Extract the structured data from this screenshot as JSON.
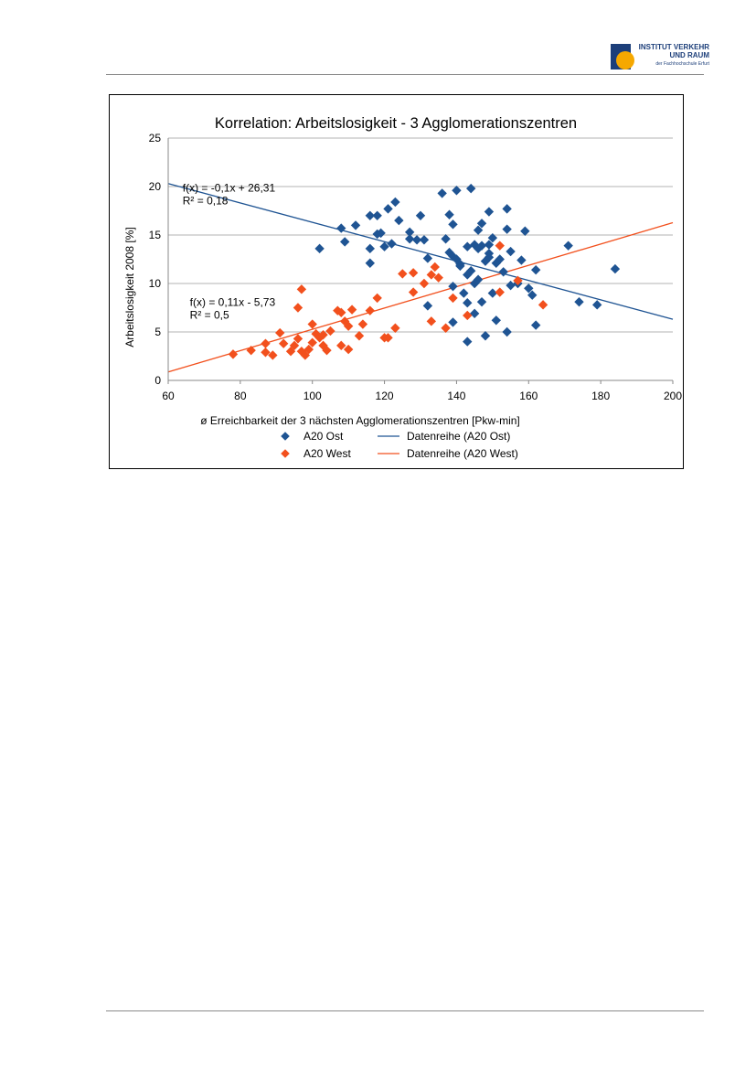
{
  "header": {
    "institute_line1": "INSTITUT VERKEHR",
    "institute_line2": "UND RAUM",
    "institute_line3": "der Fachhochschule Erfurt"
  },
  "colors": {
    "ost": "#1f5493",
    "west": "#f2501d",
    "grid": "#b3b3b3",
    "logo_blue": "#1d3f7a",
    "logo_orange": "#f6a800"
  },
  "chart_data": {
    "type": "scatter",
    "title": "Korrelation: Arbeitslosigkeit - 3 Agglomerationszentren",
    "xlabel": "ø Erreichbarkeit der 3 nächsten Agglomerationszentren [Pkw-min]",
    "ylabel": "Arbeitslosigkeit 2008 [%]",
    "xlim": [
      60,
      200
    ],
    "ylim": [
      0,
      25
    ],
    "xticks": [
      60,
      80,
      100,
      120,
      140,
      160,
      180,
      200
    ],
    "yticks": [
      0,
      5,
      10,
      15,
      20,
      25
    ],
    "grid": "horizontal",
    "legend_position": "bottom",
    "series": [
      {
        "name": "A20 Ost",
        "kind": "points",
        "color": "#1f5493",
        "points": [
          [
            102,
            13.6
          ],
          [
            108,
            15.7
          ],
          [
            109,
            14.3
          ],
          [
            112,
            16.0
          ],
          [
            116,
            12.1
          ],
          [
            116,
            17.0
          ],
          [
            116,
            13.6
          ],
          [
            118,
            17.0
          ],
          [
            118,
            15.1
          ],
          [
            119,
            15.2
          ],
          [
            120,
            13.8
          ],
          [
            121,
            17.7
          ],
          [
            122,
            14.1
          ],
          [
            123,
            18.4
          ],
          [
            124,
            16.5
          ],
          [
            127,
            14.6
          ],
          [
            127,
            15.3
          ],
          [
            129,
            14.5
          ],
          [
            130,
            17.0
          ],
          [
            131,
            14.5
          ],
          [
            132,
            12.6
          ],
          [
            132,
            7.7
          ],
          [
            136,
            19.3
          ],
          [
            137,
            14.6
          ],
          [
            138,
            17.1
          ],
          [
            138,
            13.2
          ],
          [
            139,
            12.8
          ],
          [
            139,
            16.1
          ],
          [
            139,
            9.7
          ],
          [
            139,
            6.0
          ],
          [
            140,
            19.6
          ],
          [
            140,
            12.5
          ],
          [
            141,
            12.0
          ],
          [
            141,
            11.8
          ],
          [
            142,
            9.0
          ],
          [
            143,
            13.8
          ],
          [
            143,
            10.9
          ],
          [
            143,
            8.0
          ],
          [
            143,
            4.0
          ],
          [
            144,
            19.8
          ],
          [
            144,
            11.3
          ],
          [
            145,
            14.0
          ],
          [
            145,
            10.0
          ],
          [
            145,
            6.9
          ],
          [
            146,
            15.5
          ],
          [
            146,
            13.6
          ],
          [
            146,
            10.4
          ],
          [
            147,
            16.2
          ],
          [
            147,
            13.9
          ],
          [
            147,
            8.1
          ],
          [
            148,
            12.3
          ],
          [
            148,
            4.6
          ],
          [
            149,
            14.0
          ],
          [
            149,
            13.1
          ],
          [
            149,
            17.4
          ],
          [
            149,
            12.7
          ],
          [
            150,
            14.7
          ],
          [
            150,
            9.0
          ],
          [
            151,
            12.1
          ],
          [
            151,
            6.2
          ],
          [
            152,
            12.5
          ],
          [
            153,
            11.2
          ],
          [
            154,
            17.7
          ],
          [
            154,
            15.6
          ],
          [
            154,
            5.0
          ],
          [
            155,
            13.3
          ],
          [
            155,
            9.8
          ],
          [
            157,
            10.0
          ],
          [
            158,
            12.4
          ],
          [
            159,
            15.4
          ],
          [
            160,
            9.5
          ],
          [
            161,
            8.8
          ],
          [
            162,
            11.4
          ],
          [
            162,
            5.7
          ],
          [
            171,
            13.9
          ],
          [
            174,
            8.1
          ],
          [
            179,
            7.8
          ],
          [
            184,
            11.5
          ]
        ]
      },
      {
        "name": "A20 West",
        "kind": "points",
        "color": "#f2501d",
        "points": [
          [
            78,
            2.7
          ],
          [
            83,
            3.1
          ],
          [
            87,
            3.8
          ],
          [
            87,
            2.9
          ],
          [
            89,
            2.6
          ],
          [
            91,
            4.9
          ],
          [
            92,
            3.8
          ],
          [
            94,
            3.0
          ],
          [
            95,
            3.6
          ],
          [
            96,
            4.3
          ],
          [
            96,
            7.5
          ],
          [
            97,
            9.4
          ],
          [
            97,
            3.0
          ],
          [
            98,
            2.6
          ],
          [
            99,
            3.2
          ],
          [
            100,
            3.9
          ],
          [
            100,
            5.8
          ],
          [
            101,
            4.8
          ],
          [
            102,
            4.4
          ],
          [
            103,
            4.7
          ],
          [
            103,
            3.6
          ],
          [
            104,
            3.1
          ],
          [
            105,
            5.1
          ],
          [
            107,
            7.2
          ],
          [
            108,
            3.6
          ],
          [
            108,
            7.0
          ],
          [
            109,
            6.1
          ],
          [
            110,
            5.6
          ],
          [
            110,
            3.2
          ],
          [
            111,
            7.3
          ],
          [
            113,
            4.6
          ],
          [
            114,
            5.8
          ],
          [
            116,
            7.2
          ],
          [
            118,
            8.5
          ],
          [
            120,
            4.4
          ],
          [
            121,
            4.4
          ],
          [
            123,
            5.4
          ],
          [
            125,
            11.0
          ],
          [
            128,
            9.1
          ],
          [
            128,
            11.1
          ],
          [
            131,
            10.0
          ],
          [
            133,
            10.9
          ],
          [
            133,
            6.1
          ],
          [
            134,
            11.7
          ],
          [
            135,
            10.6
          ],
          [
            137,
            5.4
          ],
          [
            139,
            8.5
          ],
          [
            143,
            6.7
          ],
          [
            152,
            9.1
          ],
          [
            152,
            13.9
          ],
          [
            157,
            10.3
          ],
          [
            164,
            7.8
          ]
        ]
      },
      {
        "name": "Datenreihe (A20 Ost)",
        "kind": "trendline",
        "color": "#1f5493",
        "slope": -0.1,
        "intercept": 26.31
      },
      {
        "name": "Datenreihe (A20 West)",
        "kind": "trendline",
        "color": "#f2501d",
        "slope": 0.11,
        "intercept": -5.73
      }
    ],
    "annotations": [
      {
        "line1": "f(x) = -0,1x + 26,31",
        "line2": "R² = 0,18",
        "x": 64,
        "y": 19.5
      },
      {
        "line1": "f(x) = 0,11x - 5,73",
        "line2": "R² = 0,5",
        "x": 66,
        "y": 7.7
      }
    ]
  }
}
